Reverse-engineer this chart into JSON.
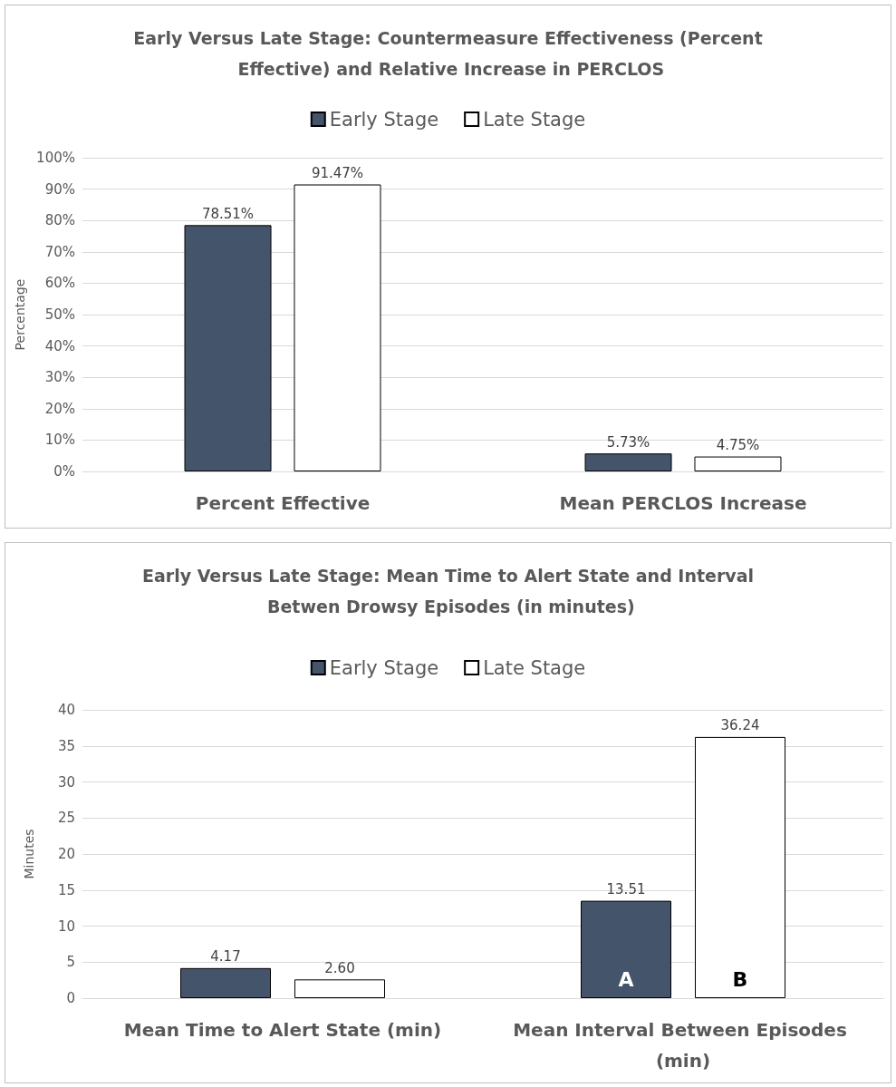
{
  "chart_data": [
    {
      "type": "bar",
      "title": "Early Versus Late Stage: Countermeasure Effectiveness (Percent Effective) and Relative Increase in PERCLOS",
      "ylabel": "Percentage",
      "categories": [
        "Percent Effective",
        "Mean PERCLOS Increase"
      ],
      "series": [
        {
          "name": "Early Stage",
          "color": "#44546a",
          "values": [
            78.51,
            5.73
          ],
          "value_labels": [
            "78.51%",
            "5.73%"
          ]
        },
        {
          "name": "Late Stage",
          "color": "#ffffff",
          "values": [
            91.47,
            4.75
          ],
          "value_labels": [
            "91.47%",
            "4.75%"
          ]
        }
      ],
      "ylim": [
        0,
        100
      ],
      "yticks": [
        {
          "value": 0,
          "label": "0%"
        },
        {
          "value": 10,
          "label": "10%"
        },
        {
          "value": 20,
          "label": "20%"
        },
        {
          "value": 30,
          "label": "30%"
        },
        {
          "value": 40,
          "label": "40%"
        },
        {
          "value": 50,
          "label": "50%"
        },
        {
          "value": 60,
          "label": "60%"
        },
        {
          "value": 70,
          "label": "70%"
        },
        {
          "value": 80,
          "label": "80%"
        },
        {
          "value": 90,
          "label": "90%"
        },
        {
          "value": 100,
          "label": "100%"
        }
      ],
      "grid": "y",
      "legend": "top"
    },
    {
      "type": "bar",
      "title": "Early Versus Late Stage: Mean Time to Alert State and Interval Betwen Drowsy Episodes (in minutes)",
      "ylabel": "Minutes",
      "categories": [
        "Mean Time to Alert State (min)",
        "Mean Interval Between Episodes (min)"
      ],
      "series": [
        {
          "name": "Early Stage",
          "color": "#44546a",
          "values": [
            4.17,
            13.51
          ],
          "value_labels": [
            "4.17",
            "13.51"
          ]
        },
        {
          "name": "Late Stage",
          "color": "#ffffff",
          "values": [
            2.6,
            36.24
          ],
          "value_labels": [
            "2.60",
            "36.24"
          ]
        }
      ],
      "ylim": [
        0,
        40
      ],
      "yticks": [
        0,
        5,
        10,
        15,
        20,
        25,
        30,
        35,
        40
      ],
      "annotations": [
        "A",
        "B"
      ],
      "grid": "y",
      "legend": "top"
    }
  ]
}
